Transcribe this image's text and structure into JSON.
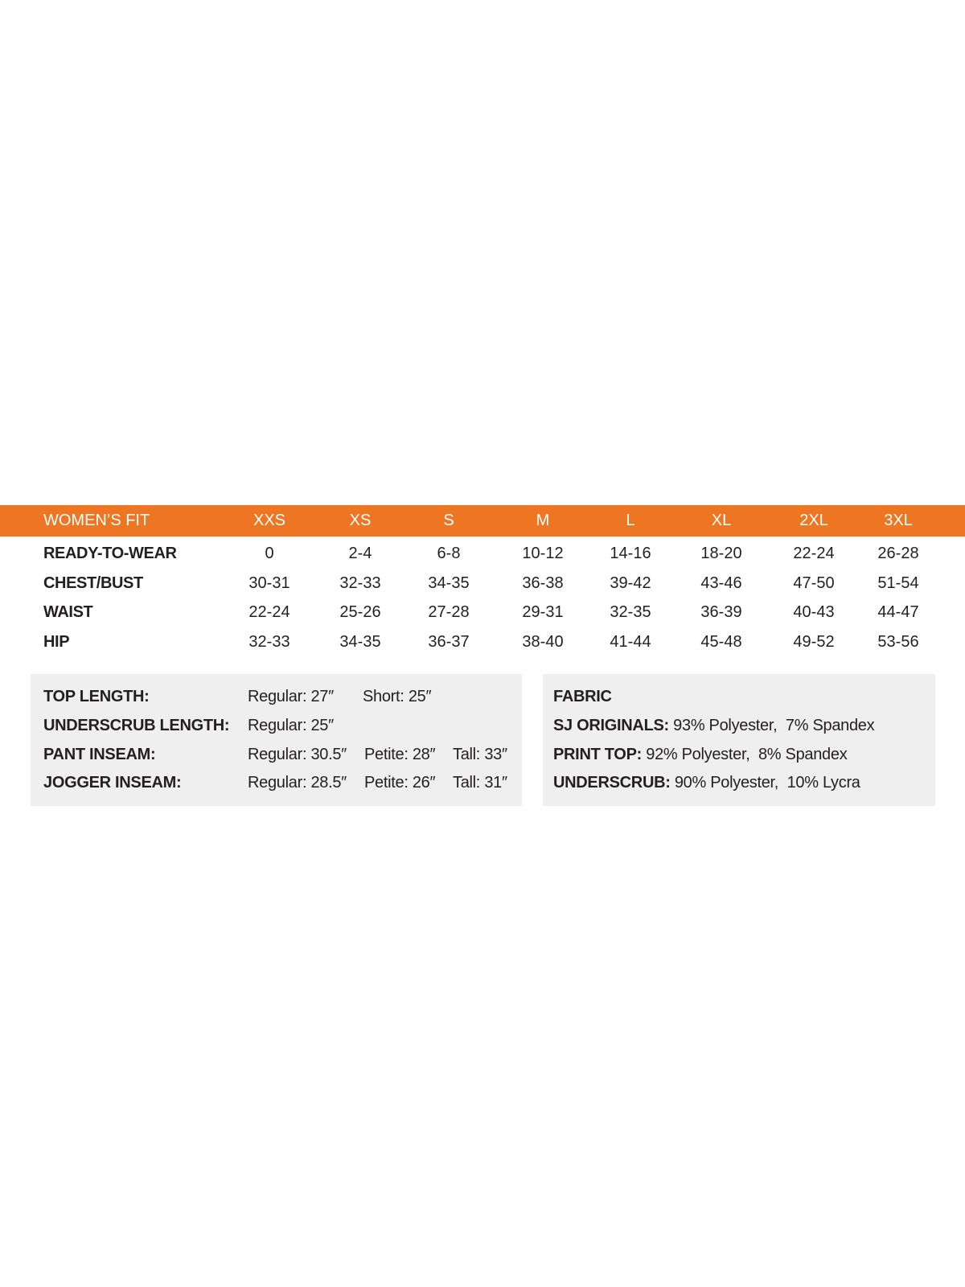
{
  "table": {
    "title": "WOMEN’S FIT",
    "sizes": [
      "XXS",
      "XS",
      "S",
      "M",
      "L",
      "XL",
      "2XL",
      "3XL"
    ],
    "rows": [
      {
        "label": "READY-TO-WEAR",
        "values": [
          "0",
          "2-4",
          "6-8",
          "10-12",
          "14-16",
          "18-20",
          "22-24",
          "26-28"
        ]
      },
      {
        "label": "CHEST/BUST",
        "values": [
          "30-31",
          "32-33",
          "34-35",
          "36-38",
          "39-42",
          "43-46",
          "47-50",
          "51-54"
        ]
      },
      {
        "label": "WAIST",
        "values": [
          "22-24",
          "25-26",
          "27-28",
          "29-31",
          "32-35",
          "36-39",
          "40-43",
          "44-47"
        ]
      },
      {
        "label": "HIP",
        "values": [
          "32-33",
          "34-35",
          "36-37",
          "38-40",
          "41-44",
          "45-48",
          "49-52",
          "53-56"
        ]
      }
    ]
  },
  "lengths": [
    {
      "label": "TOP LENGTH:",
      "regular": "Regular: 27″",
      "second": "Short: 25″",
      "tall": ""
    },
    {
      "label": "UNDERSCRUB LENGTH:",
      "regular": "Regular: 25″",
      "second": "",
      "tall": ""
    },
    {
      "label": "PANT INSEAM:",
      "regular": "Regular: 30.5″",
      "second": "Petite: 28″",
      "tall": "Tall: 33″"
    },
    {
      "label": "JOGGER INSEAM:",
      "regular": "Regular: 28.5″",
      "second": "Petite: 26″",
      "tall": "Tall: 31″"
    }
  ],
  "fabric": {
    "title": "FABRIC",
    "items": [
      {
        "label": "SJ ORIGINALS:",
        "value": "93% Polyester,  7% Spandex"
      },
      {
        "label": "PRINT TOP:",
        "value": "92% Polyester,  8% Spandex"
      },
      {
        "label": "UNDERSCRUB:",
        "value": "90% Polyester,  10% Lycra"
      }
    ]
  },
  "colors": {
    "header": "#ee7623",
    "panel": "#eeefee",
    "text": "#231f20"
  }
}
